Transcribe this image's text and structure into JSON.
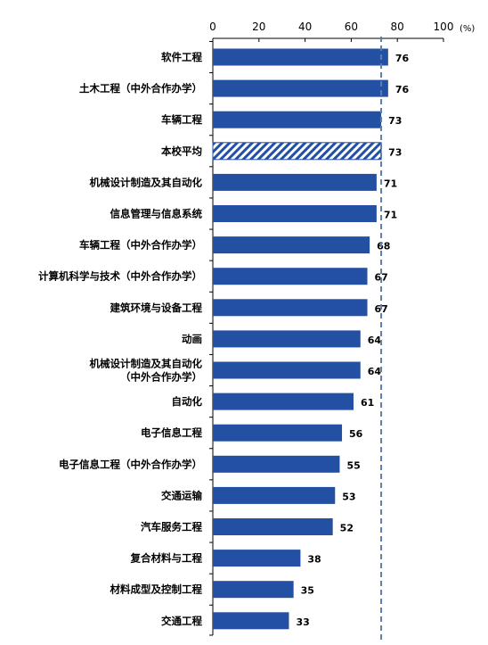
{
  "chart_data": {
    "type": "bar",
    "orientation": "horizontal",
    "x_ticks": [
      "0",
      "20",
      "40",
      "60",
      "80",
      "100"
    ],
    "unit": "(%)",
    "xlim": [
      0,
      100
    ],
    "grid": false,
    "reference_line": {
      "value": 73,
      "style": "dashed"
    },
    "categories": [
      [
        "软件工程"
      ],
      [
        "土木工程（中外合作办学）"
      ],
      [
        "车辆工程"
      ],
      [
        "本校平均"
      ],
      [
        "机械设计制造及其自动化"
      ],
      [
        "信息管理与信息系统"
      ],
      [
        "车辆工程（中外合作办学）"
      ],
      [
        "计算机科学与技术（中外合作办学）"
      ],
      [
        "建筑环境与设备工程"
      ],
      [
        "动画"
      ],
      [
        "机械设计制造及其自动化",
        "（中外合作办学）"
      ],
      [
        "自动化"
      ],
      [
        "电子信息工程"
      ],
      [
        "电子信息工程（中外合作办学）"
      ],
      [
        "交通运输"
      ],
      [
        "汽车服务工程"
      ],
      [
        "复合材料与工程"
      ],
      [
        "材料成型及控制工程"
      ],
      [
        "交通工程"
      ]
    ],
    "values": [
      76,
      76,
      73,
      73,
      71,
      71,
      68,
      67,
      67,
      64,
      64,
      61,
      56,
      55,
      53,
      52,
      38,
      35,
      33
    ],
    "value_labels": [
      "76",
      "76",
      "73",
      "73",
      "71",
      "71",
      "68",
      "67",
      "67",
      "64",
      "64",
      "61",
      "56",
      "55",
      "53",
      "52",
      "38",
      "35",
      "33"
    ],
    "highlight_index": 3,
    "colors": {
      "bar": "#2450A4",
      "highlight_stripe": "#2450A4",
      "highlight_bg": "#ffffff",
      "axis": "#000000",
      "reference": "#5B7FA6"
    }
  }
}
